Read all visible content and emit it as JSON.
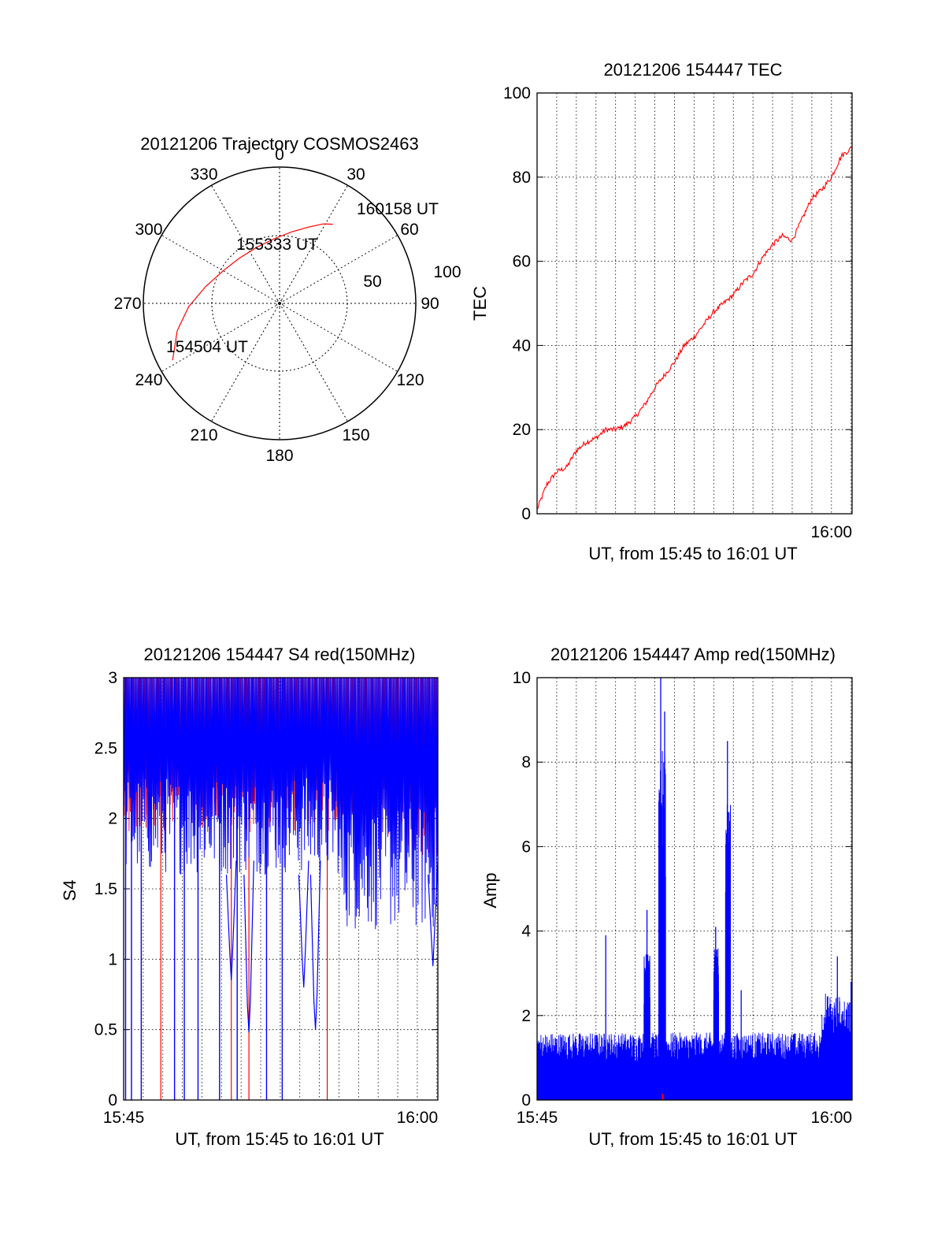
{
  "chart_data": [
    {
      "type": "polar",
      "title": "20121206 Trajectory COSMOS2463",
      "theta_labels": [
        "0",
        "30",
        "60",
        "90",
        "120",
        "150",
        "180",
        "210",
        "240",
        "270",
        "300",
        "330"
      ],
      "radial_labels": [
        "50",
        "100"
      ],
      "radial_max": 100,
      "grid": true,
      "line_color": "#ff0000",
      "trajectory": [
        {
          "az": 242,
          "el": 10
        },
        {
          "az": 255,
          "el": 20
        },
        {
          "az": 268,
          "el": 30
        },
        {
          "az": 283,
          "el": 40
        },
        {
          "az": 300,
          "el": 47
        },
        {
          "az": 318,
          "el": 50
        },
        {
          "az": 338,
          "el": 50
        },
        {
          "az": 356,
          "el": 47
        },
        {
          "az": 10,
          "el": 42
        },
        {
          "az": 21,
          "el": 36
        },
        {
          "az": 29,
          "el": 30
        },
        {
          "az": 34,
          "el": 27
        }
      ],
      "annotations": [
        "160158 UT",
        "155333 UT",
        "154504 UT"
      ]
    },
    {
      "type": "line",
      "title": "20121206 154447 TEC",
      "xlabel": "UT, from 15:45 to 16:01 UT",
      "ylabel": "TEC",
      "xlim_minutes": [
        0,
        16.05
      ],
      "ylim": [
        0,
        100
      ],
      "yticks": [
        "0",
        "20",
        "40",
        "60",
        "80",
        "100"
      ],
      "xtick_labels": [
        "16:00"
      ],
      "grid": true,
      "series": [
        {
          "color": "#ff0000",
          "x": [
            0,
            0.5,
            1,
            1.5,
            2,
            2.5,
            3,
            3.5,
            4,
            4.5,
            5,
            5.5,
            6,
            6.5,
            7,
            7.5,
            8,
            8.5,
            9,
            9.5,
            10,
            10.5,
            11,
            11.5,
            12,
            12.5,
            13,
            13.5,
            14,
            14.5,
            15,
            15.5,
            16.05
          ],
          "y": [
            1,
            7,
            10,
            11,
            15,
            17,
            18,
            20,
            20,
            21,
            23,
            26,
            30,
            33,
            36,
            40,
            42,
            45,
            48,
            50,
            52,
            55,
            57,
            61,
            64,
            66,
            65,
            70,
            75,
            77,
            80,
            85,
            87
          ]
        }
      ]
    },
    {
      "type": "line",
      "title": "20121206 154447 S4 red(150MHz)",
      "xlabel": "UT, from 15:45 to 16:01 UT",
      "ylabel": "S4",
      "xlim_minutes": [
        0,
        16.05
      ],
      "ylim": [
        0,
        3
      ],
      "yticks": [
        "0",
        "0.5",
        "1",
        "1.5",
        "2",
        "2.5",
        "3"
      ],
      "xtick_labels": [
        "15:45",
        "16:00"
      ],
      "grid": true,
      "series": [
        {
          "color": "#ff0000",
          "x_drop_minutes": [
            1.9,
            5.5,
            6.4,
            10.4
          ],
          "baseline_low": 1.5,
          "baseline_high": 3
        },
        {
          "color": "#0000ff",
          "x_drop_minutes": [
            0.1,
            0.4,
            0.9,
            2.6,
            3.1,
            3.8,
            4.9,
            5.8,
            7.3,
            8.1
          ],
          "dips": [
            {
              "x": 5.5,
              "y": 0.85
            },
            {
              "x": 6.4,
              "y": 0.48
            },
            {
              "x": 9.2,
              "y": 0.8
            },
            {
              "x": 9.8,
              "y": 0.5
            },
            {
              "x": 15.8,
              "y": 0.95
            }
          ]
        }
      ]
    },
    {
      "type": "line",
      "title": "20121206 154447 Amp red(150MHz)",
      "xlabel": "UT, from 15:45 to 16:01 UT",
      "ylabel": "Amp",
      "xlim_minutes": [
        0,
        16.05
      ],
      "ylim": [
        0,
        10
      ],
      "yticks": [
        "0",
        "2",
        "4",
        "6",
        "8",
        "10"
      ],
      "xtick_labels": [
        "15:45",
        "16:00"
      ],
      "grid": true,
      "series": [
        {
          "color": "#0000ff",
          "peaks": [
            {
              "x": 3.5,
              "y": 3.9
            },
            {
              "x": 5.6,
              "y": 4.5
            },
            {
              "x": 6.3,
              "y": 10.0
            },
            {
              "x": 6.5,
              "y": 9.2
            },
            {
              "x": 9.1,
              "y": 4.1
            },
            {
              "x": 9.7,
              "y": 8.5
            },
            {
              "x": 10.4,
              "y": 2.6
            },
            {
              "x": 15.3,
              "y": 3.4
            },
            {
              "x": 16.0,
              "y": 2.8
            }
          ]
        },
        {
          "color": "#ff0000",
          "peaks": [
            {
              "x": 6.4,
              "y": 0.15
            }
          ]
        }
      ]
    }
  ]
}
